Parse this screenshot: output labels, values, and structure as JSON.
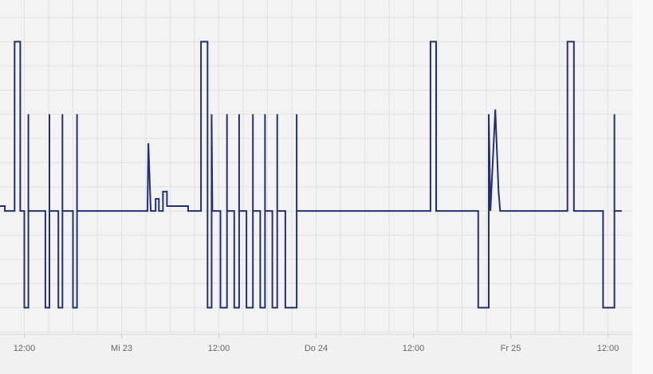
{
  "chart_data": {
    "type": "line",
    "x": [
      -15.0,
      -14.4,
      -14.4,
      -13.2,
      -13.2,
      -12.5,
      -12.5,
      -12.0,
      -12.0,
      -11.5,
      -11.5,
      -11.5,
      -9.4,
      -9.4,
      -8.9,
      -8.9,
      -8.9,
      -7.8,
      -7.8,
      -7.3,
      -7.3,
      -7.3,
      -6.0,
      -6.0,
      -5.5,
      -5.5,
      -5.5,
      3.2,
      3.3,
      3.6,
      4.2,
      4.2,
      4.6,
      4.6,
      5.1,
      5.1,
      5.6,
      5.6,
      8.2,
      8.2,
      9.8,
      9.8,
      10.6,
      10.6,
      11.1,
      11.1,
      11.2,
      12.2,
      12.2,
      13.0,
      13.0,
      13.0,
      13.9,
      13.9,
      14.5,
      14.5,
      14.5,
      15.4,
      15.4,
      16.2,
      16.2,
      16.2,
      17.1,
      17.1,
      17.7,
      17.7,
      17.7,
      18.6,
      18.6,
      19.2,
      19.2,
      19.2,
      20.2,
      20.2,
      21.6,
      21.6,
      21.6,
      38.1,
      38.1,
      38.8,
      38.8,
      44.0,
      44.0,
      45.3,
      45.3,
      45.5,
      46.1,
      46.5,
      46.7,
      55.0,
      55.0,
      55.8,
      55.8,
      59.4,
      59.4,
      60.8,
      60.8,
      60.8,
      61.7
    ],
    "series": [
      {
        "color": "#25306e",
        "values": [
          0.2,
          0.2,
          0,
          0,
          7,
          7,
          0,
          0,
          -4,
          -4,
          4,
          0,
          0,
          -4,
          -4,
          4,
          0,
          0,
          -4,
          -4,
          4,
          0,
          0,
          -4,
          -4,
          4,
          0,
          0,
          2.8,
          0,
          0,
          0.5,
          0.5,
          0,
          0,
          0.8,
          0.8,
          0.2,
          0.2,
          0,
          0,
          7,
          7,
          -4,
          -4,
          4,
          0,
          0,
          -4,
          -4,
          4,
          0,
          0,
          -4,
          -4,
          4,
          0,
          0,
          -4,
          -4,
          4,
          0,
          0,
          -4,
          -4,
          4,
          0,
          0,
          -4,
          -4,
          4,
          0,
          0,
          -4,
          -4,
          4,
          0,
          0,
          7,
          7,
          0,
          0,
          -4,
          -4,
          4,
          0,
          4.2,
          0.8,
          0,
          0,
          7,
          7,
          0,
          0,
          -4,
          -4,
          4,
          0,
          0
        ]
      }
    ],
    "xlim": [
      -15,
      63
    ],
    "xticks": [
      {
        "value": -12,
        "label": "12:00"
      },
      {
        "value": 0,
        "label": "Mi 23"
      },
      {
        "value": 12,
        "label": "12:00"
      },
      {
        "value": 24,
        "label": "Do 24"
      },
      {
        "value": 36,
        "label": "12:00"
      },
      {
        "value": 48,
        "label": "Fr 25"
      },
      {
        "value": 60,
        "label": "12:00"
      }
    ],
    "xgrid": [
      -12,
      -9,
      -6,
      -3,
      0,
      3,
      6,
      9,
      12,
      15,
      18,
      21,
      24,
      27,
      30,
      33,
      36,
      39,
      42,
      45,
      48,
      51,
      54,
      57,
      60
    ],
    "ylim": [
      -5,
      8
    ],
    "yticks": [
      -5,
      -4,
      -3,
      -2,
      -1,
      0,
      1,
      2,
      3,
      4,
      5,
      6,
      7,
      8
    ],
    "grid": true
  }
}
